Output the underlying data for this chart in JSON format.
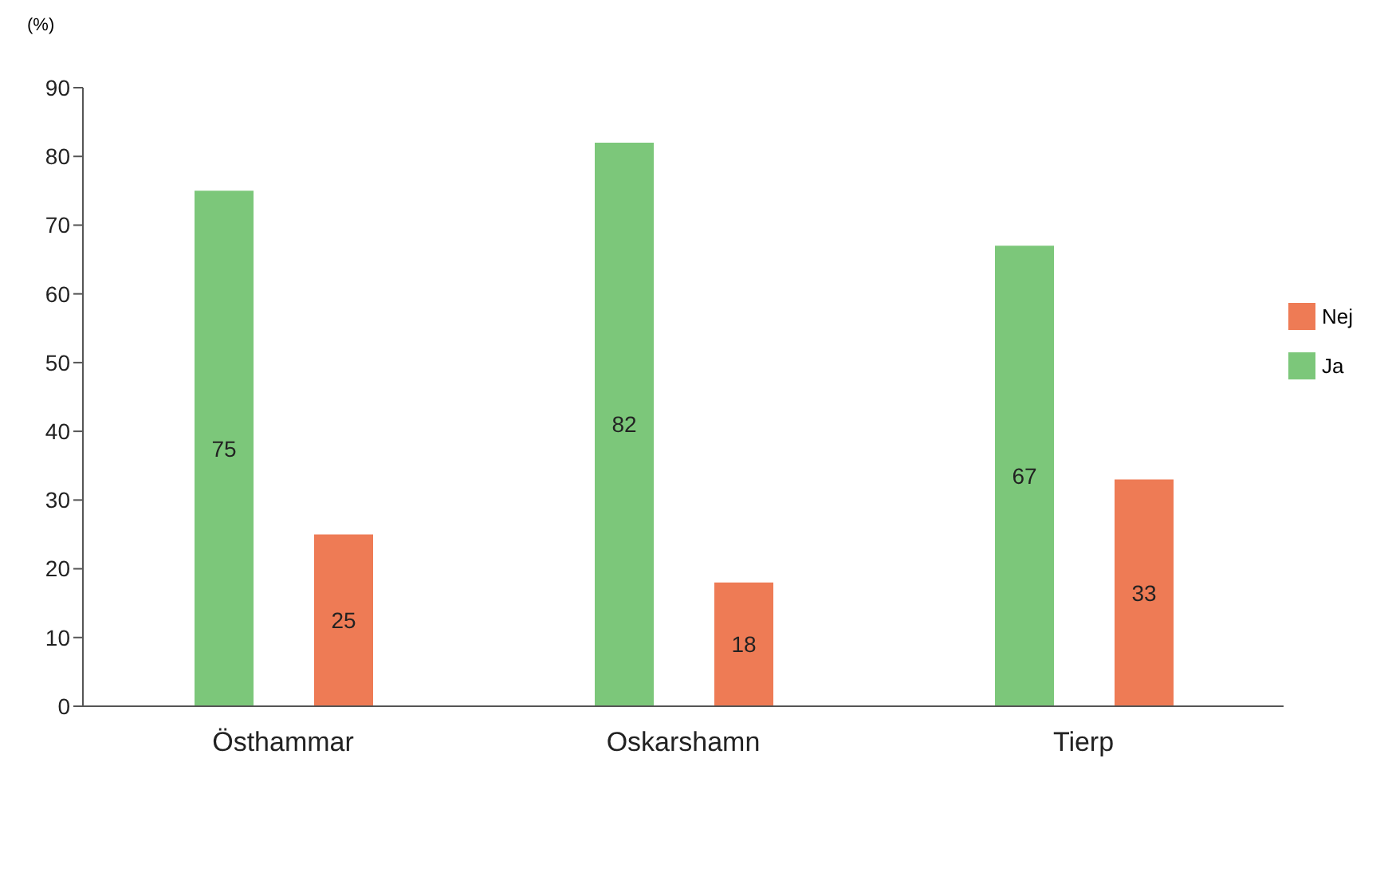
{
  "chart_data": {
    "type": "bar",
    "ylabel": "(%)",
    "categories": [
      "Östhammar",
      "Oskarshamn",
      "Tierp"
    ],
    "series": [
      {
        "name": "Ja",
        "color": "#7cc77a",
        "values": [
          75,
          82,
          67
        ]
      },
      {
        "name": "Nej",
        "color": "#ee7b55",
        "values": [
          25,
          18,
          33
        ]
      }
    ],
    "ylim": [
      0,
      90
    ],
    "yticks": [
      0,
      10,
      20,
      30,
      40,
      50,
      60,
      70,
      80,
      90
    ],
    "data_labels": true,
    "legend": "right",
    "grid": false
  }
}
